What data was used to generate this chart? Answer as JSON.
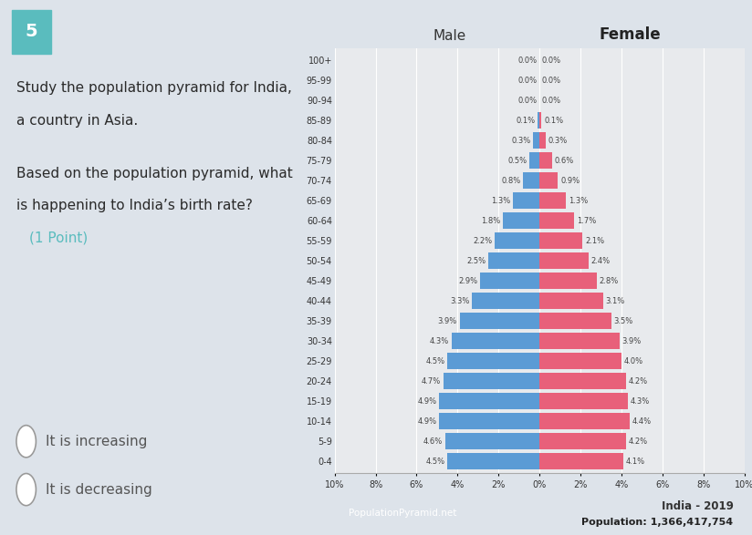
{
  "age_groups": [
    "0-4",
    "5-9",
    "10-14",
    "15-19",
    "20-24",
    "25-29",
    "30-34",
    "35-39",
    "40-44",
    "45-49",
    "50-54",
    "55-59",
    "60-64",
    "65-69",
    "70-74",
    "75-79",
    "80-84",
    "85-89",
    "90-94",
    "95-99",
    "100+"
  ],
  "male_pct": [
    4.5,
    4.6,
    4.9,
    4.9,
    4.7,
    4.5,
    4.3,
    3.9,
    3.3,
    2.9,
    2.5,
    2.2,
    1.8,
    1.3,
    0.8,
    0.5,
    0.3,
    0.1,
    0.0,
    0.0,
    0.0
  ],
  "female_pct": [
    4.1,
    4.2,
    4.4,
    4.3,
    4.2,
    4.0,
    3.9,
    3.5,
    3.1,
    2.8,
    2.4,
    2.1,
    1.7,
    1.3,
    0.9,
    0.6,
    0.3,
    0.1,
    0.0,
    0.0,
    0.0
  ],
  "male_color": "#5b9bd5",
  "female_color": "#e8607a",
  "bg_color": "#dde3ea",
  "chart_bg": "#e8eaed",
  "title_india": "India - 2019",
  "title_pop": "Population: 1,366,417,754",
  "label_male": "Male",
  "label_female": "Female",
  "label_source": "PopulationPyramid.net",
  "question_num": "5",
  "question_text1": "Study the population pyramid for India,",
  "question_text2": "a country in Asia.",
  "question_text3": "Based on the population pyramid, what",
  "question_text4": "is happening to India’s birth rate?",
  "question_text5": "(1 Point)",
  "answer1": "It is increasing",
  "answer2": "It is decreasing",
  "xlim": 10
}
